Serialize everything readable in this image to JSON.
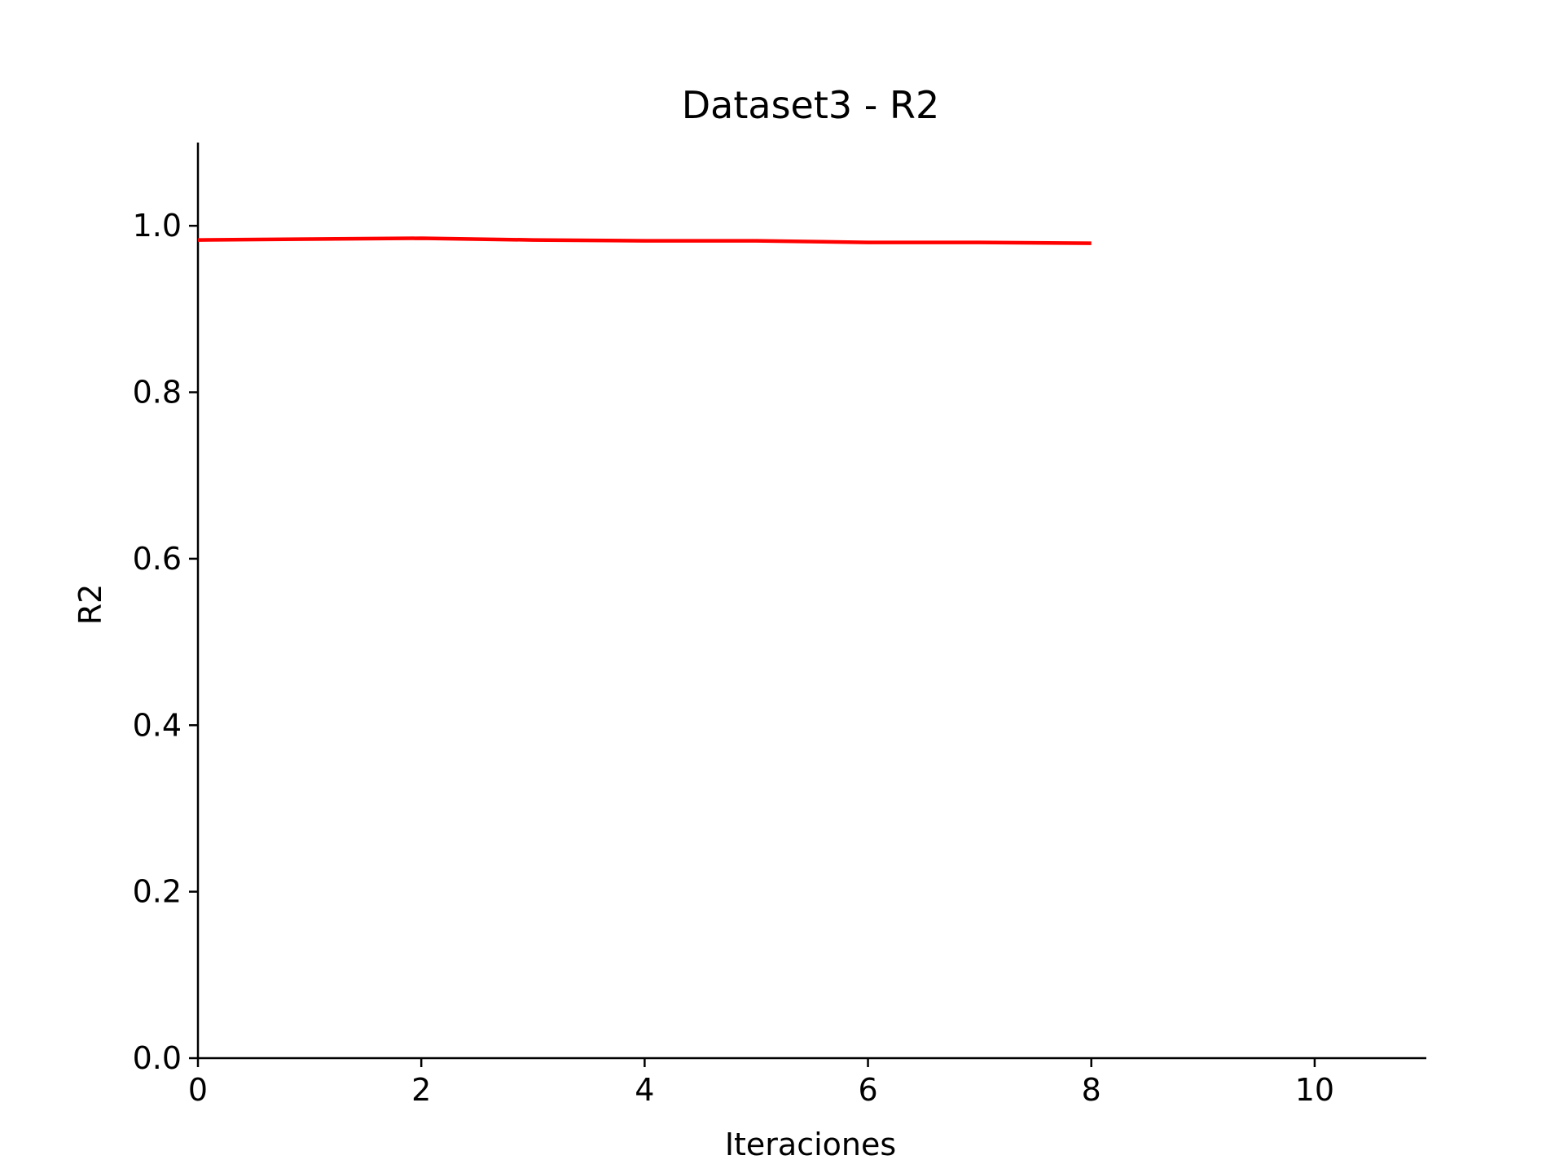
{
  "chart_data": {
    "type": "line",
    "title": "Dataset3 - R2",
    "xlabel": "Iteraciones",
    "ylabel": "R2",
    "xlim": [
      0,
      11
    ],
    "ylim": [
      0,
      1.1
    ],
    "xticks": [
      0,
      2,
      4,
      6,
      8,
      10
    ],
    "yticks": [
      0.0,
      0.2,
      0.4,
      0.6,
      0.8,
      1.0
    ],
    "xtick_labels": [
      "0",
      "2",
      "4",
      "6",
      "8",
      "10"
    ],
    "ytick_labels": [
      "0.0",
      "0.2",
      "0.4",
      "0.6",
      "0.8",
      "1.0"
    ],
    "grid": false,
    "series": [
      {
        "color": "#ff0000",
        "x": [
          0,
          1,
          2,
          3,
          4,
          5,
          6,
          7,
          8
        ],
        "y": [
          0.983,
          0.984,
          0.985,
          0.983,
          0.982,
          0.982,
          0.98,
          0.98,
          0.979
        ]
      }
    ]
  }
}
